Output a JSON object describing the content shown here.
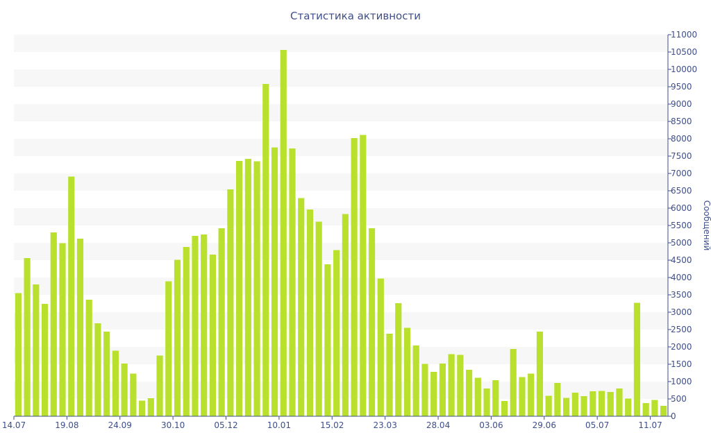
{
  "chart_data": {
    "type": "bar",
    "title": "Статистика активности",
    "xlabel": "",
    "ylabel": "Сообщений",
    "ylim": [
      0,
      11000
    ],
    "y_ticks": [
      0,
      500,
      1000,
      1500,
      2000,
      2500,
      3000,
      3500,
      4000,
      4500,
      5000,
      5500,
      6000,
      6500,
      7000,
      7500,
      8000,
      8500,
      9000,
      9500,
      10000,
      10500,
      11000
    ],
    "x_tick_labels": [
      {
        "index": 0,
        "label": "14.07"
      },
      {
        "index": 6,
        "label": "19.08"
      },
      {
        "index": 12,
        "label": "24.09"
      },
      {
        "index": 18,
        "label": "30.10"
      },
      {
        "index": 24,
        "label": "05.12"
      },
      {
        "index": 30,
        "label": "10.01"
      },
      {
        "index": 36,
        "label": "15.02"
      },
      {
        "index": 42,
        "label": "23.03"
      },
      {
        "index": 48,
        "label": "28.04"
      },
      {
        "index": 54,
        "label": "03.06"
      },
      {
        "index": 60,
        "label": "29.06"
      },
      {
        "index": 66,
        "label": "05.07"
      },
      {
        "index": 72,
        "label": "11.07"
      }
    ],
    "values": [
      3550,
      4560,
      3800,
      3240,
      5300,
      4990,
      6910,
      5120,
      3360,
      2680,
      2440,
      1890,
      1520,
      1230,
      450,
      520,
      1750,
      3890,
      4510,
      4880,
      5200,
      5240,
      4660,
      5420,
      6540,
      7360,
      7420,
      7350,
      9580,
      7750,
      10560,
      7720,
      6290,
      5960,
      5610,
      4380,
      4790,
      5830,
      8020,
      8110,
      5420,
      3970,
      2380,
      3260,
      2550,
      2040,
      1510,
      1280,
      1520,
      1790,
      1770,
      1340,
      1110,
      800,
      1040,
      440,
      1940,
      1130,
      1230,
      2440,
      590,
      960,
      530,
      680,
      580,
      720,
      730,
      700,
      800,
      510,
      3270,
      380,
      470,
      300
    ],
    "grid": "horizontal-bands",
    "legend": "none",
    "colors": {
      "bar": "#b8e02c",
      "band": "#f7f7f7",
      "axis": "#3e4e8c",
      "text": "#3e4e8c"
    }
  }
}
